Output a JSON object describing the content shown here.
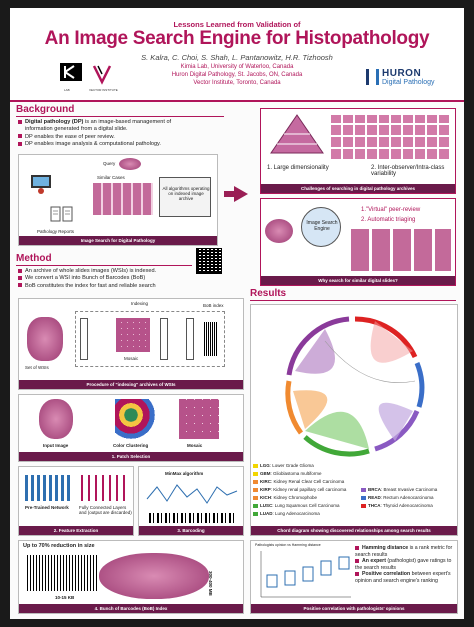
{
  "header": {
    "subtitle": "Lessons Learned from Validation of",
    "title": "An Image Search Engine for Histopathology",
    "authors": "S. Kalra, C. Choi, S. Shah, L. Pantanowitz, H.R. Tizhoosh",
    "affiliations": [
      "Kimia Lab, University of Waterloo, Canada",
      "Huron Digital Pathology, St. Jacobs, ON, Canada",
      "Vector Institute, Toronto, Canada"
    ],
    "logo_left_text": "KIMIA",
    "logo_left_caption": "LAB",
    "logo_vector_caption": "VECTOR INSTITUTE",
    "huron_name": "HURON",
    "huron_sub": "Digital Pathology"
  },
  "background": {
    "heading": "Background",
    "bullets": [
      {
        "bold": "Digital pathology (DP)",
        "rest": " is an image-based management of"
      },
      {
        "bold": "",
        "rest": "information generated from a digital slide."
      },
      {
        "bold": "",
        "rest": "DP enables the ease of peer review."
      },
      {
        "bold": "",
        "rest": "DP enables image analysis & computational pathology."
      }
    ],
    "fig_labels": {
      "query": "Query",
      "similar": "Similar Cases",
      "reports": "Pathology Reports",
      "algo": "All algorithms operating on indexed image archive"
    },
    "fig_caption": "Image Search for Digital Pathology",
    "challenges": [
      "1. Large dimensionality",
      "2. Inter-observer/Intra-class variability"
    ],
    "challenges_caption": "Challenges of searching in digital pathology archives",
    "why": [
      "1.\"Virtual\" peer-review",
      "2. Automatic triaging"
    ],
    "why_center": "Image Search Engine",
    "why_caption": "Why search for similar digital slides?"
  },
  "method": {
    "heading": "Method",
    "bullets": [
      "An archive of whole slides images (WSIs) is indexed.",
      "We convert a WSI into Bunch of Barcodes (BoB)",
      "BoB constitutes the index for fast and reliable search"
    ],
    "indexing_labels": {
      "set": "Set of WSIs",
      "mosaic": "Mosaic",
      "indexing": "Indexing",
      "bob": "BoB index"
    },
    "caption1": "Procedure of \"indexing\" archives of WSIs",
    "patch_labels": [
      "Input Image",
      "Color Clustering",
      "Mosaic"
    ],
    "caption2": "1. Patch Selection",
    "caption3": "2. Feature Extraction",
    "caption4": "3. Barcoding",
    "fe_labels": {
      "pretrained": "Pre-Trained Network",
      "fc": "Fully Connected Layers and (output are discarded)"
    },
    "barcode_title": "MinMax algorithm",
    "reduction": "Up to 70% reduction in size",
    "size_label": "300-400 MB",
    "kb_label": "10-15 KB",
    "caption5": "4. Bunch of Barcodes (BoB) Index"
  },
  "results": {
    "heading": "Results",
    "legend": [
      {
        "code": "LGG",
        "name": "Lower Grade Glioma",
        "color": "#f2d600"
      },
      {
        "code": "GBM",
        "name": "Glioblastoma multiforme",
        "color": "#f2d600"
      },
      {
        "code": "KIRC",
        "name": "Kidney Renal Clear Cell Carcinoma",
        "color": "#f08a30"
      },
      {
        "code": "KIRP",
        "name": "Kidney renal papillary cell carcinoma",
        "color": "#f08a30"
      },
      {
        "code": "KICH",
        "name": "Kidney Chromophobe",
        "color": "#f08a30"
      },
      {
        "code": "LUSC",
        "name": "Lung Squamous Cell Carcinoma",
        "color": "#41a838"
      },
      {
        "code": "LUAD",
        "name": "Lung Adenocarcinoma",
        "color": "#41a838"
      }
    ],
    "legend2": [
      {
        "code": "BRCA",
        "name": "Breast Invasive Carcinoma",
        "color": "#8a5ac2"
      },
      {
        "code": "READ",
        "name": "Rectum Adenocarcinoma",
        "color": "#3a6ec8"
      },
      {
        "code": "THCA",
        "name": "Thyroid Adenocarcinoma",
        "color": "#d22"
      }
    ],
    "chord_caption": "Chord diagram showing discovered relationships among search results",
    "box_title": "Pathologists opinion vs Hamming distance",
    "points": [
      {
        "bold": "Hamming distance",
        "rest": " is a rank metric for search results"
      },
      {
        "bold": "An expert",
        "rest": " (pathologist) gave ratings to the search results"
      },
      {
        "bold": "Positive correlation",
        "rest": " between expert's opinion and search engine's ranking"
      }
    ],
    "box_caption": "Positive correlation with pathologists' opinions"
  }
}
